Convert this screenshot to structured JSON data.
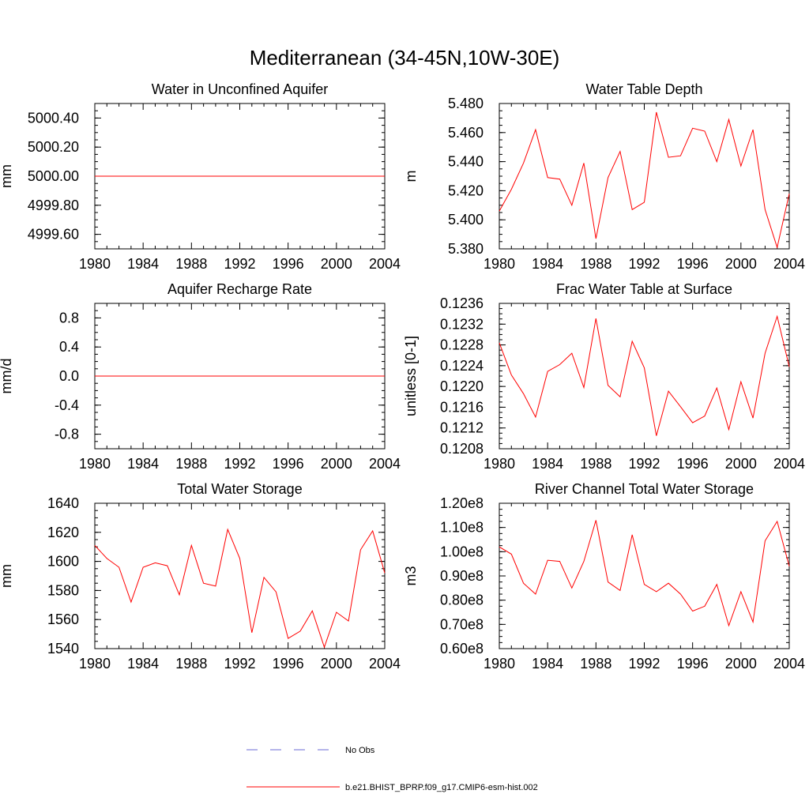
{
  "figure_title": "Mediterranean (34-45N,10W-30E)",
  "colors": {
    "model": "#ff0000",
    "obs": "#6a6ad6",
    "axis": "#000000"
  },
  "legend": {
    "entries": [
      {
        "label": "No Obs",
        "style": "dashed",
        "color": "#6a6ad6"
      },
      {
        "label": "b.e21.BHIST_BPRP.f09_g17.CMIP6-esm-hist.002",
        "style": "solid",
        "color": "#ff0000"
      }
    ]
  },
  "chart_data": [
    {
      "type": "line",
      "title": "Water in Unconfined Aquifer",
      "ylabel": "mm",
      "xlim": [
        1980,
        2004
      ],
      "ylim": [
        4999.5,
        5000.5
      ],
      "xticks": [
        "1980",
        "1984",
        "1988",
        "1992",
        "1996",
        "2000",
        "2004"
      ],
      "yticks": [
        {
          "v": 4999.6,
          "label": "4999.60"
        },
        {
          "v": 4999.8,
          "label": "4999.80"
        },
        {
          "v": 5000.0,
          "label": "5000.00"
        },
        {
          "v": 5000.2,
          "label": "5000.20"
        },
        {
          "v": 5000.4,
          "label": "5000.40"
        }
      ],
      "x": [
        1980,
        1981,
        1982,
        1983,
        1984,
        1985,
        1986,
        1987,
        1988,
        1989,
        1990,
        1991,
        1992,
        1993,
        1994,
        1995,
        1996,
        1997,
        1998,
        1999,
        2000,
        2001,
        2002,
        2003,
        2004
      ],
      "values": [
        5000,
        5000,
        5000,
        5000,
        5000,
        5000,
        5000,
        5000,
        5000,
        5000,
        5000,
        5000,
        5000,
        5000,
        5000,
        5000,
        5000,
        5000,
        5000,
        5000,
        5000,
        5000,
        5000,
        5000,
        5000
      ]
    },
    {
      "type": "line",
      "title": "Water Table Depth",
      "ylabel": "m",
      "xlim": [
        1980,
        2004
      ],
      "ylim": [
        5.38,
        5.48
      ],
      "xticks": [
        "1980",
        "1984",
        "1988",
        "1992",
        "1996",
        "2000",
        "2004"
      ],
      "yticks": [
        {
          "v": 5.38,
          "label": "5.380"
        },
        {
          "v": 5.4,
          "label": "5.400"
        },
        {
          "v": 5.42,
          "label": "5.420"
        },
        {
          "v": 5.44,
          "label": "5.440"
        },
        {
          "v": 5.46,
          "label": "5.460"
        },
        {
          "v": 5.48,
          "label": "5.480"
        }
      ],
      "x": [
        1980,
        1981,
        1982,
        1983,
        1984,
        1985,
        1986,
        1987,
        1988,
        1989,
        1990,
        1991,
        1992,
        1993,
        1994,
        1995,
        1996,
        1997,
        1998,
        1999,
        2000,
        2001,
        2002,
        2003,
        2004
      ],
      "values": [
        5.406,
        5.421,
        5.439,
        5.462,
        5.429,
        5.428,
        5.41,
        5.439,
        5.387,
        5.429,
        5.447,
        5.407,
        5.412,
        5.474,
        5.443,
        5.444,
        5.463,
        5.461,
        5.44,
        5.469,
        5.437,
        5.462,
        5.407,
        5.381,
        5.418
      ]
    },
    {
      "type": "line",
      "title": "Aquifer Recharge Rate",
      "ylabel": "mm/d",
      "xlim": [
        1980,
        2004
      ],
      "ylim": [
        -1.0,
        1.0
      ],
      "xticks": [
        "1980",
        "1984",
        "1988",
        "1992",
        "1996",
        "2000",
        "2004"
      ],
      "yticks": [
        {
          "v": -0.8,
          "label": "-0.8"
        },
        {
          "v": -0.4,
          "label": "-0.4"
        },
        {
          "v": 0.0,
          "label": "0.0"
        },
        {
          "v": 0.4,
          "label": "0.4"
        },
        {
          "v": 0.8,
          "label": "0.8"
        }
      ],
      "x": [
        1980,
        1981,
        1982,
        1983,
        1984,
        1985,
        1986,
        1987,
        1988,
        1989,
        1990,
        1991,
        1992,
        1993,
        1994,
        1995,
        1996,
        1997,
        1998,
        1999,
        2000,
        2001,
        2002,
        2003,
        2004
      ],
      "values": [
        0,
        0,
        0,
        0,
        0,
        0,
        0,
        0,
        0,
        0,
        0,
        0,
        0,
        0,
        0,
        0,
        0,
        0,
        0,
        0,
        0,
        0,
        0,
        0,
        0
      ]
    },
    {
      "type": "line",
      "title": "Frac Water Table at Surface",
      "ylabel": "unitless [0-1]",
      "xlim": [
        1980,
        2004
      ],
      "ylim": [
        0.1208,
        0.1236
      ],
      "xticks": [
        "1980",
        "1984",
        "1988",
        "1992",
        "1996",
        "2000",
        "2004"
      ],
      "yticks": [
        {
          "v": 0.1208,
          "label": "0.1208"
        },
        {
          "v": 0.1212,
          "label": "0.1212"
        },
        {
          "v": 0.1216,
          "label": "0.1216"
        },
        {
          "v": 0.122,
          "label": "0.1220"
        },
        {
          "v": 0.1224,
          "label": "0.1224"
        },
        {
          "v": 0.1228,
          "label": "0.1228"
        },
        {
          "v": 0.1232,
          "label": "0.1232"
        },
        {
          "v": 0.1236,
          "label": "0.1236"
        }
      ],
      "x": [
        1980,
        1981,
        1982,
        1983,
        1984,
        1985,
        1986,
        1987,
        1988,
        1989,
        1990,
        1991,
        1992,
        1993,
        1994,
        1995,
        1996,
        1997,
        1998,
        1999,
        2000,
        2001,
        2002,
        2003,
        2004
      ],
      "values": [
        0.12284,
        0.12222,
        0.12186,
        0.12141,
        0.12229,
        0.12242,
        0.12264,
        0.12198,
        0.12331,
        0.12202,
        0.1218,
        0.12287,
        0.12236,
        0.12105,
        0.12191,
        0.12161,
        0.1213,
        0.12143,
        0.12197,
        0.12117,
        0.12209,
        0.12139,
        0.12264,
        0.12335,
        0.12238
      ]
    },
    {
      "type": "line",
      "title": "Total Water Storage",
      "ylabel": "mm",
      "xlim": [
        1980,
        2004
      ],
      "ylim": [
        1540,
        1640
      ],
      "xticks": [
        "1980",
        "1984",
        "1988",
        "1992",
        "1996",
        "2000",
        "2004"
      ],
      "yticks": [
        {
          "v": 1540,
          "label": "1540"
        },
        {
          "v": 1560,
          "label": "1560"
        },
        {
          "v": 1580,
          "label": "1580"
        },
        {
          "v": 1600,
          "label": "1600"
        },
        {
          "v": 1620,
          "label": "1620"
        },
        {
          "v": 1640,
          "label": "1640"
        }
      ],
      "x": [
        1980,
        1981,
        1982,
        1983,
        1984,
        1985,
        1986,
        1987,
        1988,
        1989,
        1990,
        1991,
        1992,
        1993,
        1994,
        1995,
        1996,
        1997,
        1998,
        1999,
        2000,
        2001,
        2002,
        2003,
        2004
      ],
      "values": [
        1611,
        1602,
        1596,
        1572,
        1596,
        1599,
        1597,
        1577,
        1611,
        1585,
        1583,
        1622,
        1602,
        1551,
        1589,
        1579,
        1547,
        1552,
        1566,
        1541,
        1565,
        1559,
        1608,
        1621,
        1592
      ]
    },
    {
      "type": "line",
      "title": "River Channel Total Water Storage",
      "ylabel": "m3",
      "xlim": [
        1980,
        2004
      ],
      "ylim": [
        0.6,
        1.2
      ],
      "xticks": [
        "1980",
        "1984",
        "1988",
        "1992",
        "1996",
        "2000",
        "2004"
      ],
      "yticks": [
        {
          "v": 0.6,
          "label": "0.60e8"
        },
        {
          "v": 0.7,
          "label": "0.70e8"
        },
        {
          "v": 0.8,
          "label": "0.80e8"
        },
        {
          "v": 0.9,
          "label": "0.90e8"
        },
        {
          "v": 1.0,
          "label": "1.00e8"
        },
        {
          "v": 1.1,
          "label": "1.10e8"
        },
        {
          "v": 1.2,
          "label": "1.20e8"
        }
      ],
      "x": [
        1980,
        1981,
        1982,
        1983,
        1984,
        1985,
        1986,
        1987,
        1988,
        1989,
        1990,
        1991,
        1992,
        1993,
        1994,
        1995,
        1996,
        1997,
        1998,
        1999,
        2000,
        2001,
        2002,
        2003,
        2004
      ],
      "values": [
        1.02,
        0.99,
        0.87,
        0.825,
        0.965,
        0.96,
        0.85,
        0.96,
        1.13,
        0.875,
        0.84,
        1.07,
        0.865,
        0.835,
        0.87,
        0.825,
        0.755,
        0.775,
        0.865,
        0.695,
        0.835,
        0.71,
        1.045,
        1.125,
        0.94
      ]
    }
  ]
}
